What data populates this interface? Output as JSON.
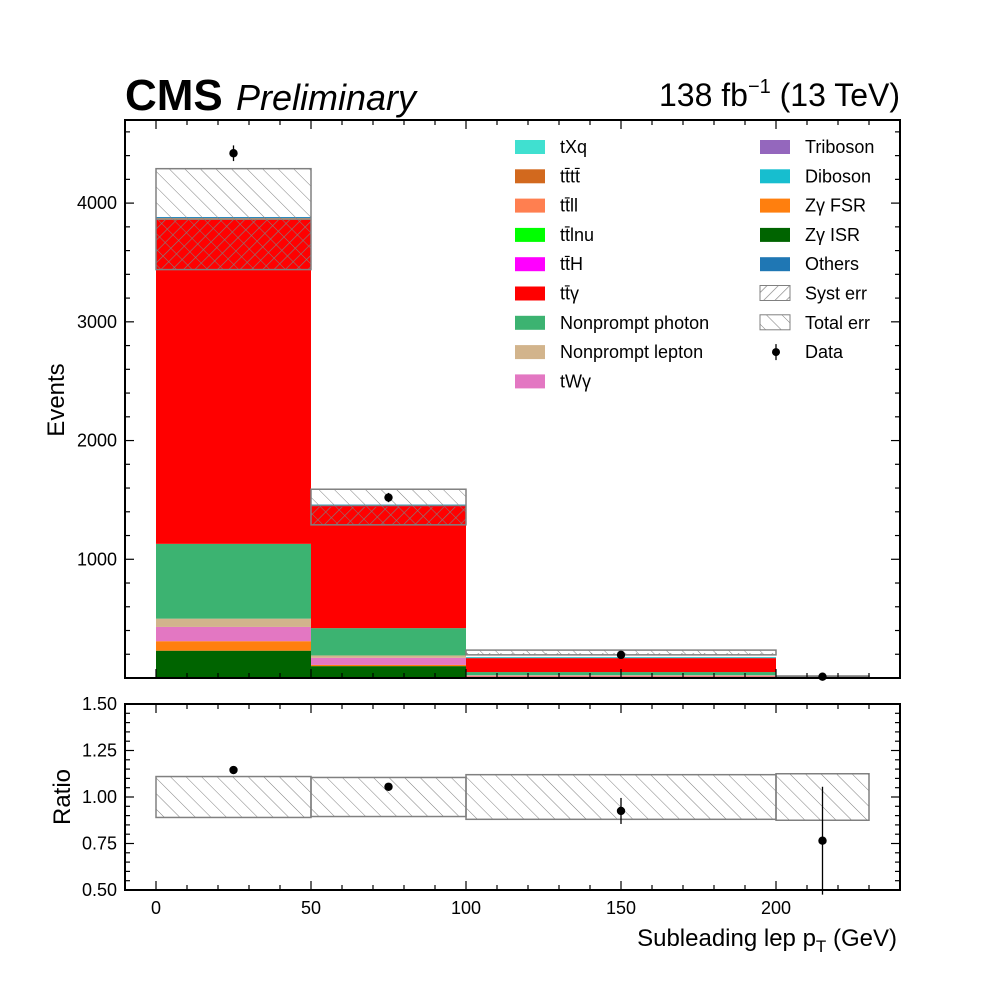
{
  "header": {
    "experiment": "CMS",
    "status": "Preliminary",
    "lumi": "138 fb",
    "lumi_exp": "−1",
    "energy": " (13 TeV)"
  },
  "chart_data": [
    {
      "type": "bar",
      "stacked": true,
      "panel": "main",
      "ylabel": "Events",
      "xlim": [
        -10,
        240
      ],
      "ylim": [
        0,
        4700
      ],
      "yticks": [
        1000,
        2000,
        3000,
        4000
      ],
      "bins": [
        [
          0,
          50
        ],
        [
          50,
          100
        ],
        [
          100,
          200
        ],
        [
          200,
          230
        ]
      ],
      "series": [
        {
          "name": "Zγ ISR",
          "color": "#006400",
          "values": [
            230,
            100,
            10,
            2
          ]
        },
        {
          "name": "Zγ FSR",
          "color": "#ff7f0e",
          "values": [
            80,
            10,
            2,
            0
          ]
        },
        {
          "name": "tWγ",
          "color": "#e377c2",
          "values": [
            120,
            60,
            8,
            1
          ]
        },
        {
          "name": "Nonprompt lepton",
          "color": "#d2b48c",
          "values": [
            70,
            20,
            4,
            0
          ]
        },
        {
          "name": "Nonprompt photon",
          "color": "#3cb371",
          "values": [
            630,
            230,
            26,
            3
          ]
        },
        {
          "name": "tt̄γ",
          "color": "#ff0000",
          "values": [
            2730,
            1030,
            120,
            9
          ]
        },
        {
          "name": "tt̄H",
          "color": "#ff00ff",
          "values": [
            4,
            2,
            1,
            0
          ]
        },
        {
          "name": "tt̄lnu",
          "color": "#00ff00",
          "values": [
            3,
            1,
            1,
            0
          ]
        },
        {
          "name": "tt̄ll",
          "color": "#ff7f50",
          "values": [
            3,
            1,
            1,
            0
          ]
        },
        {
          "name": "tt̄tt̄",
          "color": "#d2691e",
          "values": [
            2,
            1,
            0,
            0
          ]
        },
        {
          "name": "tXq",
          "color": "#40e0d0",
          "values": [
            4,
            2,
            1,
            0
          ]
        },
        {
          "name": "Triboson",
          "color": "#9467bd",
          "values": [
            2,
            1,
            0,
            0
          ]
        },
        {
          "name": "Diboson",
          "color": "#17becf",
          "values": [
            3,
            1,
            1,
            0
          ]
        },
        {
          "name": "Others",
          "color": "#1f77b4",
          "values": [
            2,
            1,
            0,
            0
          ]
        }
      ],
      "total_prediction": [
        3860,
        1440,
        210,
        15
      ],
      "syst_err_band": {
        "name": "Syst err",
        "low": [
          3440,
          1290,
          195,
          13
        ],
        "high": [
          3860,
          1440,
          210,
          15
        ]
      },
      "total_err_band": {
        "name": "Total err",
        "low": [
          3440,
          1290,
          195,
          13
        ],
        "high": [
          4290,
          1590,
          235,
          17
        ]
      },
      "data": {
        "name": "Data",
        "x": [
          25,
          75,
          150,
          215
        ],
        "y": [
          4420,
          1520,
          195,
          11
        ],
        "yerr": [
          66,
          39,
          14,
          3.5
        ]
      }
    },
    {
      "type": "scatter",
      "panel": "ratio",
      "xlabel": "Subleading lep p",
      "xlabel_sub": "T",
      "xlabel_unit": " (GeV)",
      "ylabel": "Ratio",
      "xlim": [
        -10,
        240
      ],
      "ylim": [
        0.5,
        1.5
      ],
      "xticks": [
        0,
        50,
        100,
        150,
        200
      ],
      "yticks": [
        "0.50",
        "0.75",
        "1.00",
        "1.25",
        "1.50"
      ],
      "band": {
        "low": [
          0.89,
          0.895,
          0.88,
          0.875
        ],
        "high": [
          1.11,
          1.105,
          1.12,
          1.125
        ]
      },
      "points": {
        "x": [
          25,
          75,
          150,
          215
        ],
        "y": [
          1.145,
          1.055,
          0.925,
          0.765
        ],
        "yerr": [
          0.02,
          0.02,
          0.07,
          0.29
        ]
      }
    }
  ],
  "legend": {
    "left": [
      "tXq",
      "tt̄tt̄",
      "tt̄ll",
      "tt̄lnu",
      "tt̄H",
      "tt̄γ",
      "Nonprompt photon",
      "Nonprompt lepton",
      "tWγ"
    ],
    "right": [
      "Triboson",
      "Diboson",
      "Zγ FSR",
      "Zγ ISR",
      "Others",
      "Syst err",
      "Total err",
      "Data"
    ]
  }
}
